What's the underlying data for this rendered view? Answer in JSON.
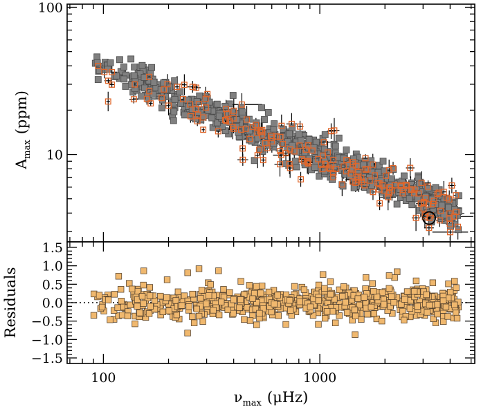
{
  "chart_data": [
    {
      "type": "scatter",
      "panel": "top",
      "xscale": "log",
      "yscale": "log",
      "xlim": [
        68,
        5200
      ],
      "ylim": [
        2.55,
        105
      ],
      "ylabel": {
        "main": "A",
        "sub": "max",
        "unit": "(ppm)"
      },
      "yticks": [
        {
          "value": 10,
          "label": "10"
        },
        {
          "value": 100,
          "label": "100"
        }
      ],
      "series": [
        {
          "kind": "grey squares",
          "color": "#808080",
          "trend": {
            "log_amplitude_at_log_numax_2": 1.59,
            "slope": -0.6
          },
          "count": 700,
          "numax_range": [
            85,
            4400
          ]
        },
        {
          "kind": "orange open squares with error bars",
          "color": "#e0662a",
          "count": 190,
          "numax_range": [
            85,
            4400
          ]
        }
      ],
      "highlight": {
        "kind": "black open circle",
        "x": 3200,
        "y": 3.7
      }
    },
    {
      "type": "scatter",
      "panel": "bottom",
      "xscale": "log",
      "xlim": [
        68,
        5200
      ],
      "ylim": [
        -1.65,
        1.65
      ],
      "ylabel": "Residuals",
      "xlabel": {
        "main": "ν",
        "sub": "max",
        "unit": "(μHz)"
      },
      "xticks": [
        {
          "value": 100,
          "label": "100"
        },
        {
          "value": 1000,
          "label": "1000"
        }
      ],
      "yticks": [
        {
          "value": 1.5,
          "label": "1.5"
        },
        {
          "value": 1.0,
          "label": "1.0"
        },
        {
          "value": 0.5,
          "label": "0.5"
        },
        {
          "value": 0.0,
          "label": "0.0"
        },
        {
          "value": -0.5,
          "label": "−0.5"
        },
        {
          "value": -1.0,
          "label": "−1.0"
        },
        {
          "value": -1.5,
          "label": "−1.5"
        }
      ],
      "zero_line": {
        "y": 0,
        "style": "dotted"
      },
      "series": [
        {
          "kind": "tan squares",
          "color": "#f0b86e",
          "count": 700,
          "spread": 0.22
        }
      ]
    }
  ]
}
